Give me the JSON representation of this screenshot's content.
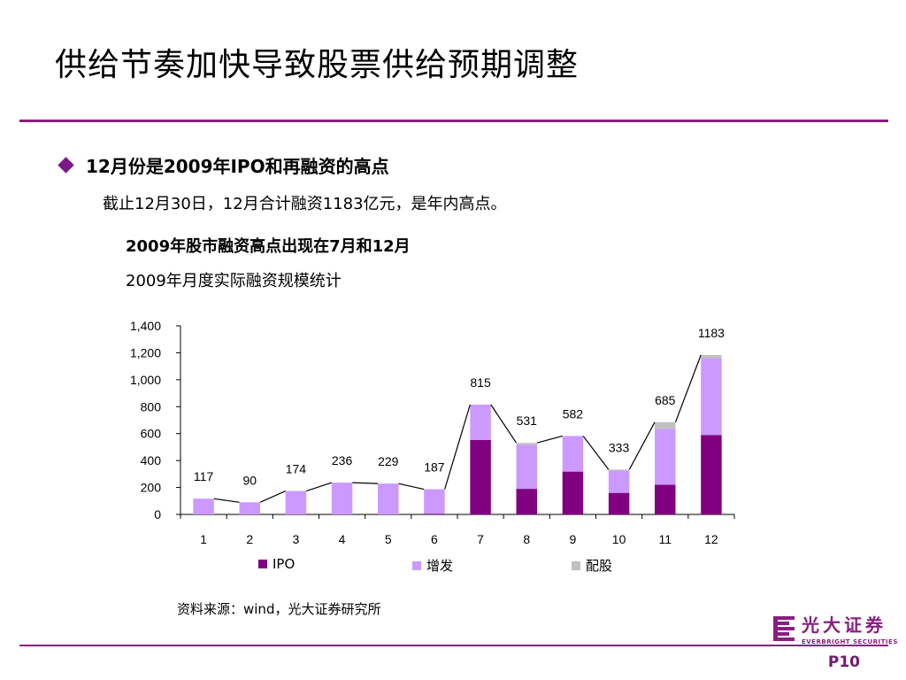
{
  "slide": {
    "title": "供给节奏加快导致股票供给预期调整",
    "bullet": "12月份是2009年IPO和再融资的高点",
    "subtext": "截止12月30日，12月合计融资1183亿元，是年内高点。",
    "source": "资料来源：wind，光大证券研究所",
    "page": "P10"
  },
  "logo": {
    "cn": "光大证券",
    "en": "EVERBRIGHT SECURITIES"
  },
  "colors": {
    "accent": "#8a1e7f",
    "ipo": "#800080",
    "zengfa": "#cc99ff",
    "peigu": "#c0c0c0"
  },
  "chart_data": {
    "type": "bar",
    "title": "2009年股市融资高点出现在7月和12月",
    "subtitle": "2009年月度实际融资规模统计",
    "categories": [
      "1",
      "2",
      "3",
      "4",
      "5",
      "6",
      "7",
      "8",
      "9",
      "10",
      "11",
      "12"
    ],
    "series": [
      {
        "name": "IPO",
        "values": [
          0,
          0,
          0,
          0,
          0,
          5,
          553,
          190,
          318,
          160,
          220,
          590
        ]
      },
      {
        "name": "增发",
        "values": [
          117,
          90,
          174,
          236,
          229,
          182,
          262,
          327,
          264,
          165,
          415,
          570
        ]
      },
      {
        "name": "配股",
        "values": [
          0,
          0,
          0,
          0,
          0,
          0,
          0,
          14,
          0,
          8,
          50,
          23
        ]
      }
    ],
    "totals": [
      117,
      90,
      174,
      236,
      229,
      187,
      815,
      531,
      582,
      333,
      685,
      1183
    ],
    "ylim": [
      0,
      1400
    ],
    "yticks": [
      "0",
      "200",
      "400",
      "600",
      "800",
      "1,000",
      "1,200",
      "1,400"
    ],
    "stacked": true,
    "legend_position": "bottom"
  }
}
